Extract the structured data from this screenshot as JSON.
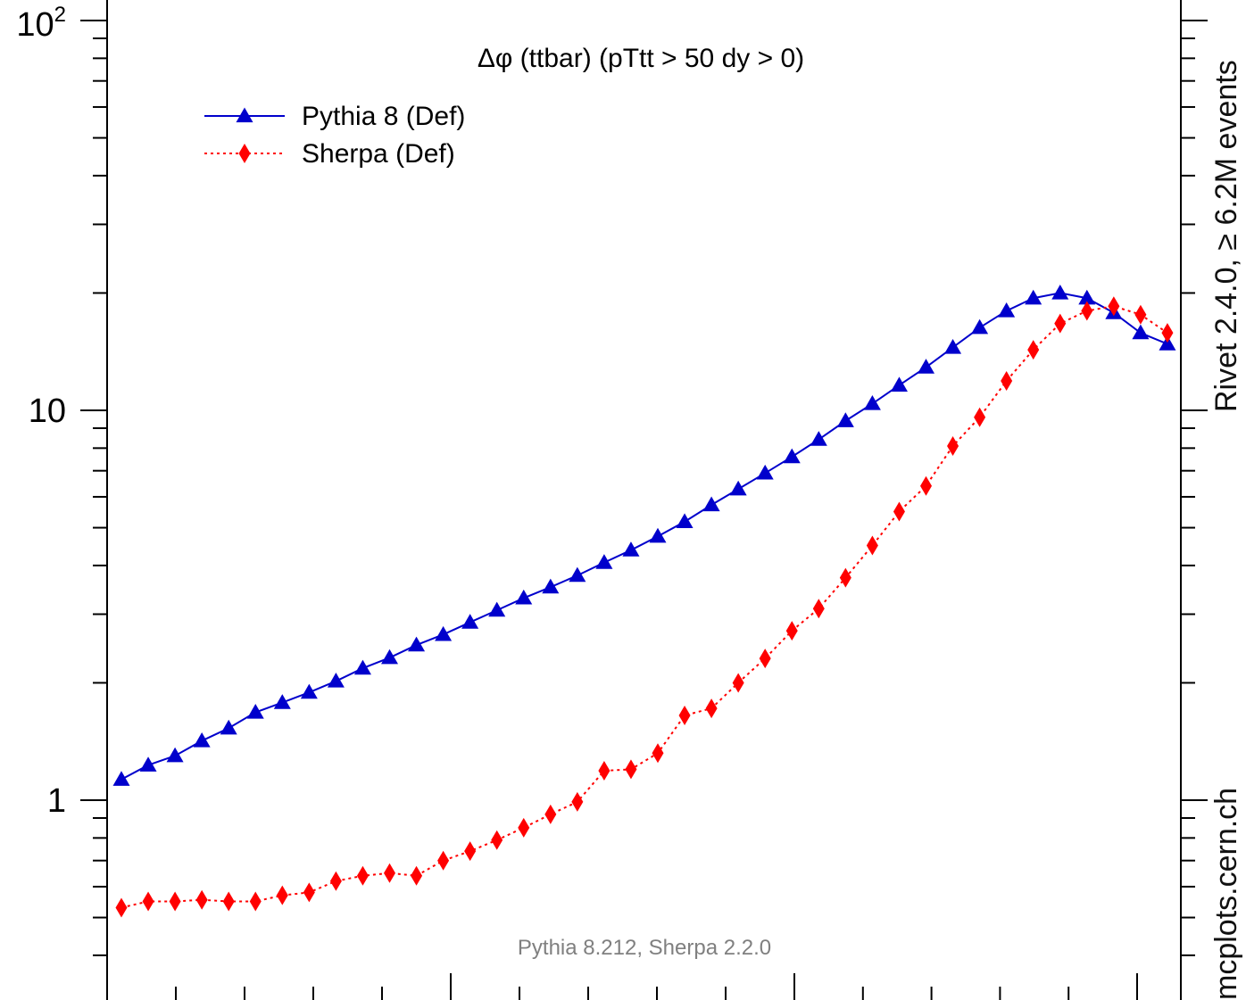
{
  "chart_data": {
    "type": "line",
    "title": "Δφ (ttbar) (pTtt > 50 dy > 0)",
    "annotation": "Pythia 8.212, Sherpa 2.2.0",
    "y_scale": "log",
    "ylim": [
      0.45,
      100
    ],
    "y_ticks": [
      {
        "value": 1,
        "label": "1"
      },
      {
        "value": 10,
        "label": "10"
      },
      {
        "value": 100,
        "label": "10",
        "sup": "2"
      }
    ],
    "legend_position": "top-left",
    "grid": false,
    "x": [
      0.5,
      1.5,
      2.5,
      3.5,
      4.5,
      5.5,
      6.5,
      7.5,
      8.5,
      9.5,
      10.5,
      11.5,
      12.5,
      13.5,
      14.5,
      15.5,
      16.5,
      17.5,
      18.5,
      19.5,
      20.5,
      21.5,
      22.5,
      23.5,
      24.5,
      25.5,
      26.5,
      27.5,
      28.5,
      29.5,
      30.5,
      31.5,
      32.5,
      33.5,
      34.5,
      35.5,
      36.5,
      37.5,
      38.5,
      39.5
    ],
    "series": [
      {
        "name": "Pythia 8 (Def)",
        "color": "#0000cc",
        "marker": "triangle",
        "line": "solid",
        "values": [
          1.13,
          1.23,
          1.3,
          1.42,
          1.53,
          1.68,
          1.78,
          1.89,
          2.02,
          2.18,
          2.32,
          2.5,
          2.66,
          2.86,
          3.07,
          3.3,
          3.52,
          3.77,
          4.07,
          4.38,
          4.75,
          5.18,
          5.72,
          6.28,
          6.9,
          7.6,
          8.42,
          9.4,
          10.4,
          11.6,
          12.9,
          14.5,
          16.3,
          18.0,
          19.4,
          20.0,
          19.4,
          17.8,
          15.8,
          14.8
        ]
      },
      {
        "name": "Sherpa (Def)",
        "color": "#ff0000",
        "marker": "diamond",
        "line": "dotted",
        "values": [
          0.53,
          0.55,
          0.55,
          0.555,
          0.55,
          0.55,
          0.57,
          0.58,
          0.62,
          0.64,
          0.65,
          0.64,
          0.7,
          0.74,
          0.79,
          0.85,
          0.92,
          0.99,
          1.19,
          1.2,
          1.32,
          1.65,
          1.72,
          2.0,
          2.31,
          2.72,
          3.1,
          3.72,
          4.5,
          5.5,
          6.4,
          8.1,
          9.6,
          11.9,
          14.3,
          16.7,
          18.0,
          18.5,
          17.6,
          15.8
        ]
      }
    ]
  },
  "side_labels": {
    "rivet": "Rivet 2.4.0,  ≥ 6.2M events",
    "mcplots": "mcplots.cern.ch"
  }
}
